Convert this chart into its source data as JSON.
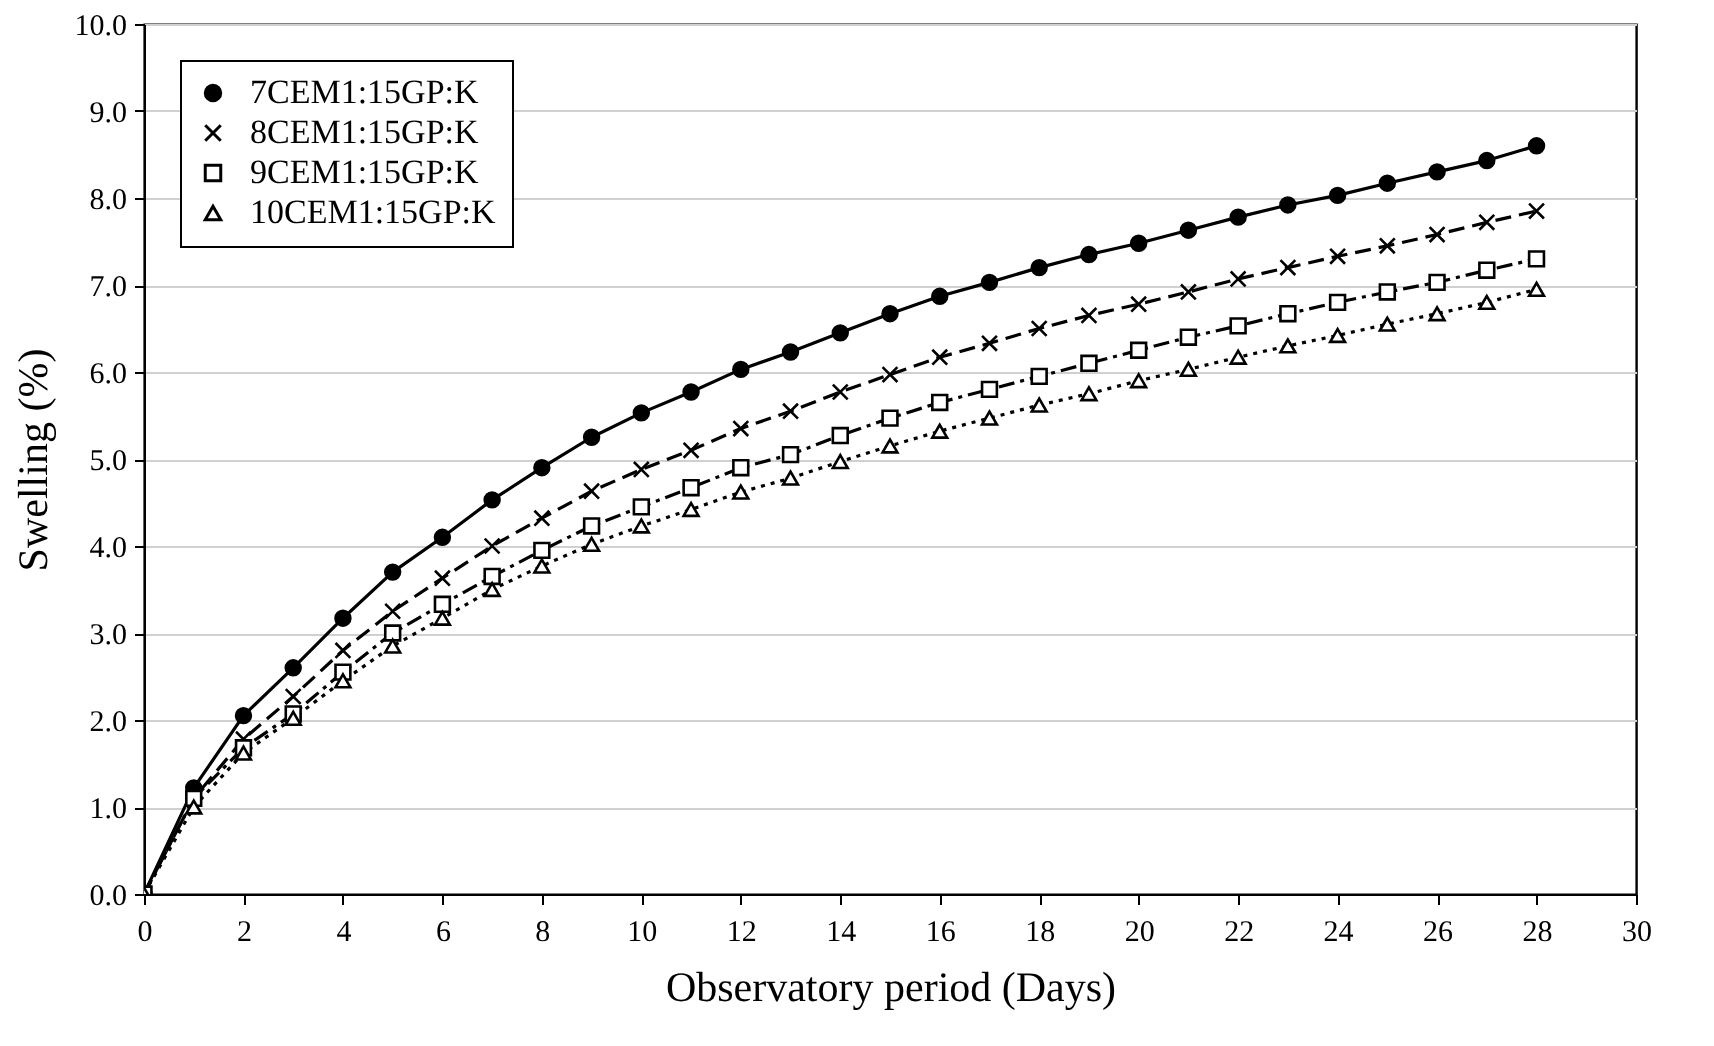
{
  "chart_data": {
    "type": "line",
    "xlabel": "Observatory period (Days)",
    "ylabel": "Swelling (%)",
    "x": [
      0,
      1,
      2,
      3,
      4,
      5,
      6,
      7,
      8,
      9,
      10,
      11,
      12,
      13,
      14,
      15,
      16,
      17,
      18,
      19,
      20,
      21,
      22,
      23,
      24,
      25,
      26,
      27,
      28
    ],
    "series": [
      {
        "name": "7CEM1:15GP:K",
        "color": "#000000",
        "marker": "circle",
        "line_style": "solid",
        "values": [
          0,
          1.22,
          2.05,
          2.6,
          3.17,
          3.7,
          4.1,
          4.53,
          4.9,
          5.25,
          5.53,
          5.77,
          6.03,
          6.23,
          6.45,
          6.67,
          6.87,
          7.03,
          7.2,
          7.35,
          7.48,
          7.63,
          7.78,
          7.92,
          8.03,
          8.17,
          8.3,
          8.43,
          8.6
        ]
      },
      {
        "name": "8CEM1:15GP:K",
        "color": "#000000",
        "marker": "cross",
        "line_style": "dashed",
        "values": [
          0,
          1.1,
          1.78,
          2.27,
          2.8,
          3.25,
          3.63,
          4.0,
          4.32,
          4.63,
          4.88,
          5.1,
          5.35,
          5.55,
          5.77,
          5.97,
          6.17,
          6.33,
          6.5,
          6.65,
          6.78,
          6.92,
          7.07,
          7.2,
          7.33,
          7.45,
          7.58,
          7.72,
          7.85
        ]
      },
      {
        "name": "9CEM1:15GP:K",
        "color": "#000000",
        "marker": "square",
        "line_style": "dashdot",
        "values": [
          0,
          1.1,
          1.68,
          2.07,
          2.55,
          3.0,
          3.33,
          3.65,
          3.95,
          4.23,
          4.45,
          4.67,
          4.9,
          5.05,
          5.27,
          5.47,
          5.65,
          5.8,
          5.95,
          6.1,
          6.25,
          6.4,
          6.53,
          6.67,
          6.8,
          6.92,
          7.03,
          7.17,
          7.3
        ]
      },
      {
        "name": "10CEM1:15GP:K",
        "color": "#000000",
        "marker": "triangle",
        "line_style": "dotted",
        "values": [
          0,
          1.0,
          1.62,
          2.02,
          2.45,
          2.85,
          3.17,
          3.5,
          3.77,
          4.02,
          4.23,
          4.42,
          4.62,
          4.78,
          4.97,
          5.15,
          5.32,
          5.47,
          5.62,
          5.75,
          5.9,
          6.03,
          6.17,
          6.3,
          6.42,
          6.55,
          6.67,
          6.8,
          6.95
        ]
      }
    ],
    "xlim": [
      0,
      30
    ],
    "xticks": [
      0,
      2,
      4,
      6,
      8,
      10,
      12,
      14,
      16,
      18,
      20,
      22,
      24,
      26,
      28,
      30
    ],
    "ylim": [
      0,
      10
    ],
    "yticks": [
      {
        "value": 0,
        "label": "0.0"
      },
      {
        "value": 1,
        "label": "1.0"
      },
      {
        "value": 2,
        "label": "2.0"
      },
      {
        "value": 3,
        "label": "3.0"
      },
      {
        "value": 4,
        "label": "4.0"
      },
      {
        "value": 5,
        "label": "5.0"
      },
      {
        "value": 6,
        "label": "6.0"
      },
      {
        "value": 7,
        "label": "7.0"
      },
      {
        "value": 8,
        "label": "8.0"
      },
      {
        "value": 9,
        "label": "9.0"
      },
      {
        "value": 10,
        "label": "10.0"
      }
    ],
    "grid": "y",
    "legend": "top left"
  }
}
